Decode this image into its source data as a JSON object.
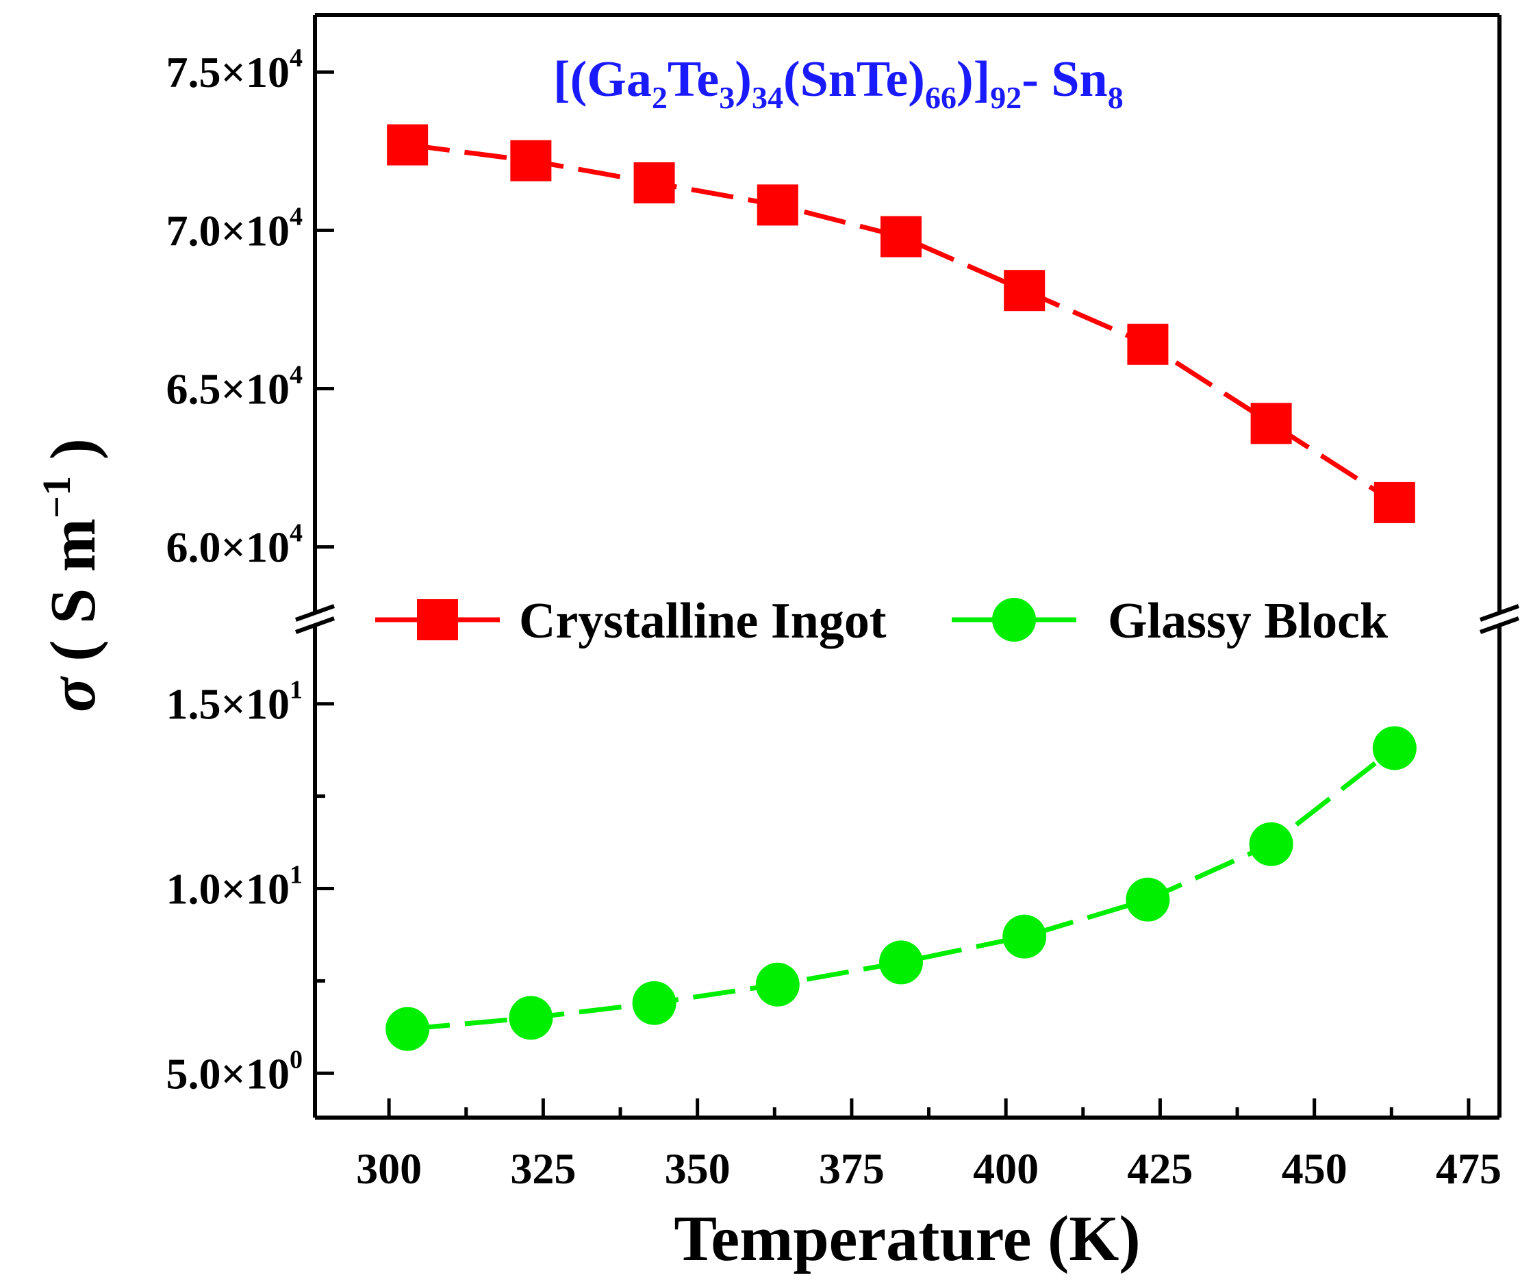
{
  "chart_data": {
    "type": "line",
    "title": {
      "parts": [
        {
          "text": "[(Ga",
          "sub": false
        },
        {
          "text": "2",
          "sub": true
        },
        {
          "text": "Te",
          "sub": false
        },
        {
          "text": "3",
          "sub": true
        },
        {
          "text": ")",
          "sub": false
        },
        {
          "text": "34",
          "sub": true
        },
        {
          "text": "(SnTe)",
          "sub": false
        },
        {
          "text": "66",
          "sub": true
        },
        {
          "text": ")]",
          "sub": false
        },
        {
          "text": "92",
          "sub": true
        },
        {
          "text": "- Sn",
          "sub": false
        },
        {
          "text": "8",
          "sub": true
        }
      ],
      "color": "#1a1aff"
    },
    "xlabel": "Temperature (K)",
    "ylabel": {
      "symbol": "σ",
      "unit": "( S m",
      "exp": "−1",
      "close": ")"
    },
    "xlim": [
      288,
      480
    ],
    "x_ticks": [
      300,
      325,
      350,
      375,
      400,
      425,
      450,
      475
    ],
    "y_axis_break": true,
    "upper_panel": {
      "ylim": [
        58500,
        76800
      ],
      "ticks": [
        {
          "value": 75000,
          "mantissa": "7.5×10",
          "exp": "4"
        },
        {
          "value": 70000,
          "mantissa": "7.0×10",
          "exp": "4"
        },
        {
          "value": 65000,
          "mantissa": "6.5×10",
          "exp": "4"
        },
        {
          "value": 60000,
          "mantissa": "6.0×10",
          "exp": "4"
        }
      ]
    },
    "lower_panel": {
      "ylim": [
        3.8,
        16.7
      ],
      "ticks": [
        {
          "value": 15,
          "mantissa": "1.5×10",
          "exp": "1"
        },
        {
          "value": 10,
          "mantissa": "1.0×10",
          "exp": "1"
        },
        {
          "value": 5,
          "mantissa": "5.0×10",
          "exp": "0"
        }
      ],
      "minor_ticks": [
        12.5,
        7.5
      ]
    },
    "series": [
      {
        "name": "Crystalline Ingot",
        "panel": "upper",
        "marker": "square",
        "color": "#ff0000",
        "x": [
          303,
          323,
          343,
          363,
          383,
          403,
          423,
          443,
          463
        ],
        "y": [
          72700,
          72200,
          71500,
          70800,
          69800,
          68100,
          66400,
          63900,
          61400
        ]
      },
      {
        "name": "Glassy Block",
        "panel": "lower",
        "marker": "circle",
        "color": "#00ee00",
        "x": [
          303,
          323,
          343,
          363,
          383,
          403,
          423,
          443,
          463
        ],
        "y": [
          6.2,
          6.5,
          6.9,
          7.4,
          8.0,
          8.7,
          9.7,
          11.2,
          13.8
        ]
      }
    ]
  }
}
